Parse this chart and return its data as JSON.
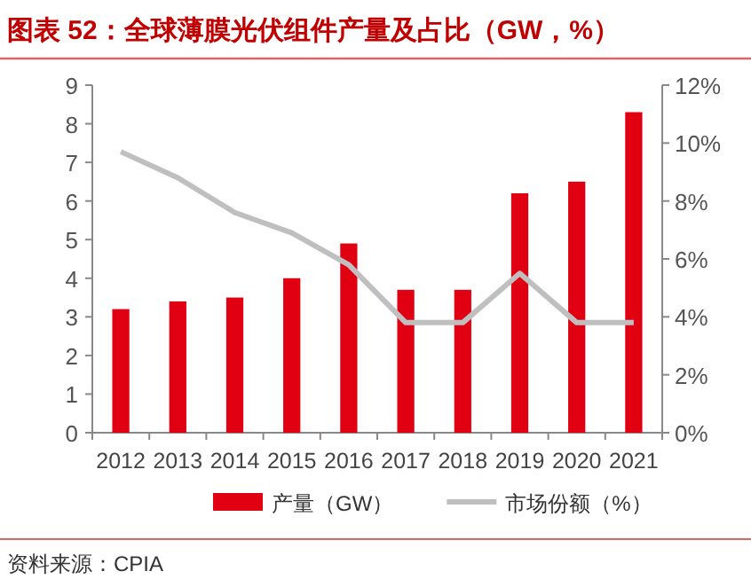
{
  "chart_data": {
    "type": "bar",
    "title": "图表 52：全球薄膜光伏组件产量及占比（GW，%）",
    "categories": [
      "2012",
      "2013",
      "2014",
      "2015",
      "2016",
      "2017",
      "2018",
      "2019",
      "2020",
      "2021"
    ],
    "series": [
      {
        "name": "产量（GW）",
        "color": "#e00012",
        "values": [
          3.2,
          3.4,
          3.5,
          4.0,
          4.9,
          3.7,
          3.7,
          6.2,
          6.5,
          8.3
        ]
      },
      {
        "name": "市场份额（%）",
        "type": "line",
        "axis": "y2",
        "color": "#bfbfbf",
        "values": [
          9.7,
          8.8,
          7.6,
          6.9,
          5.8,
          3.8,
          3.8,
          5.5,
          3.8,
          3.8
        ]
      }
    ],
    "ylim": [
      0,
      9
    ],
    "yticks": [
      0,
      1,
      2,
      3,
      4,
      5,
      6,
      7,
      8,
      9
    ],
    "y2lim": [
      0,
      12
    ],
    "y2ticks": [
      {
        "value": 0,
        "label": "0%"
      },
      {
        "value": 2,
        "label": "2%"
      },
      {
        "value": 4,
        "label": "4%"
      },
      {
        "value": 6,
        "label": "6%"
      },
      {
        "value": 8,
        "label": "8%"
      },
      {
        "value": 10,
        "label": "10%"
      },
      {
        "value": 12,
        "label": "12%"
      }
    ],
    "legend": "bottom",
    "grid": false,
    "annotations": [
      "资料来源：CPIA"
    ]
  }
}
